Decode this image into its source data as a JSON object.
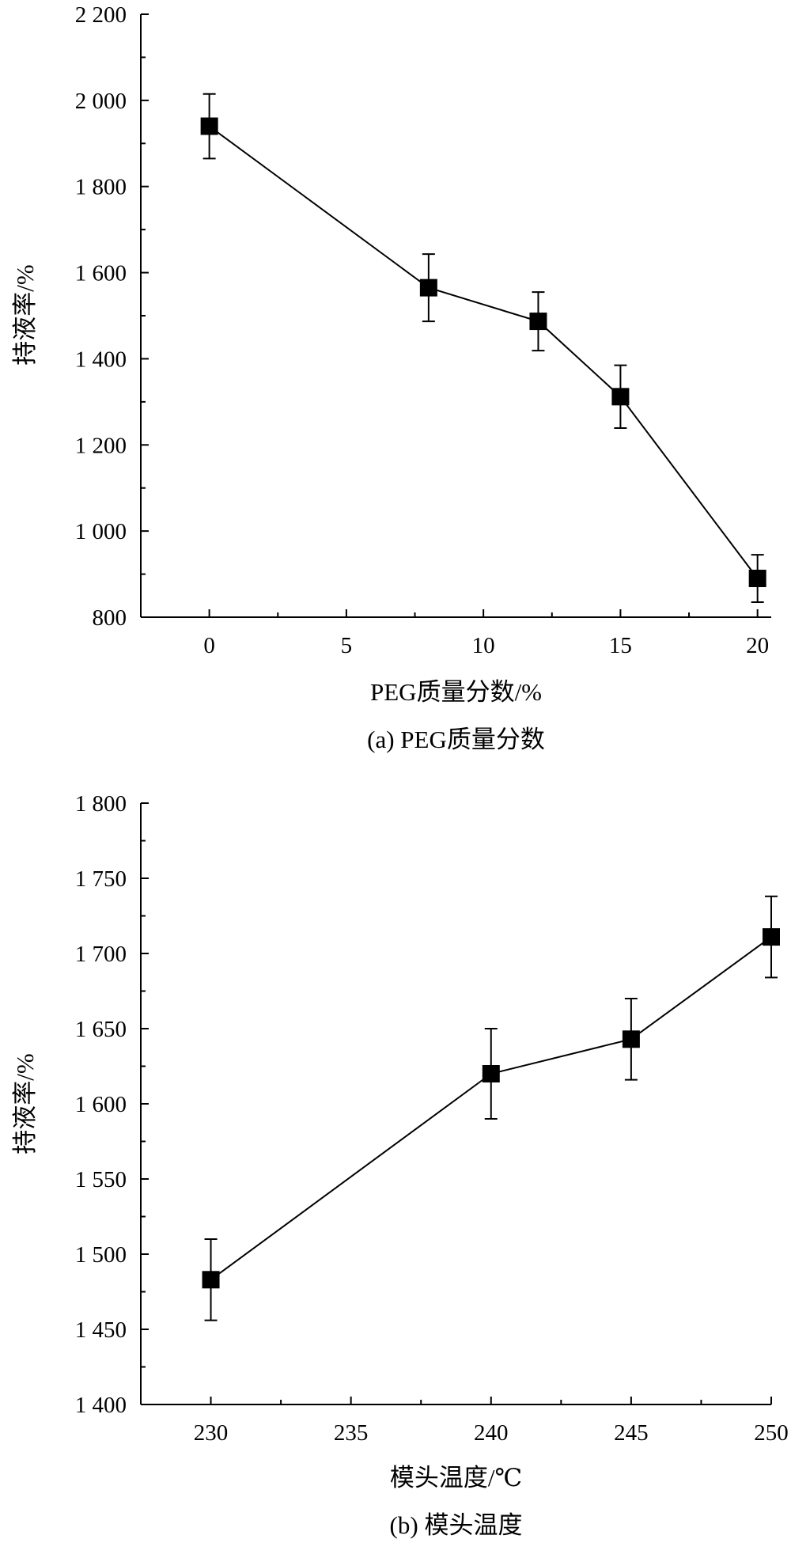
{
  "chart_data": [
    {
      "type": "line",
      "caption": "(a) PEG质量分数",
      "xlabel": "PEG质量分数/%",
      "ylabel": "持液率/%",
      "xlim": [
        -2.5,
        20.5
      ],
      "ylim": [
        800,
        2200
      ],
      "xticks": [
        0,
        5,
        10,
        15,
        20
      ],
      "xtick_labels": [
        "0",
        "5",
        "10",
        "15",
        "20"
      ],
      "yticks": [
        800,
        1000,
        1200,
        1400,
        1600,
        1800,
        2000,
        2200
      ],
      "ytick_labels": [
        "800",
        "1 000",
        "1 200",
        "1 400",
        "1 600",
        "1 800",
        "2 000",
        "2 200"
      ],
      "marker": "square",
      "series": [
        {
          "x": [
            0,
            8,
            12,
            15,
            20
          ],
          "y": [
            1940,
            1565,
            1487,
            1312,
            890
          ],
          "err": [
            75,
            78,
            68,
            73,
            55
          ]
        }
      ]
    },
    {
      "type": "line",
      "caption": "(b) 模头温度",
      "xlabel": "模头温度/℃",
      "ylabel": "持液率/%",
      "xlim": [
        227.5,
        250
      ],
      "ylim": [
        1400,
        1800
      ],
      "xticks": [
        230,
        235,
        240,
        245,
        250
      ],
      "xtick_labels": [
        "230",
        "235",
        "240",
        "245",
        "250"
      ],
      "yticks": [
        1400,
        1450,
        1500,
        1550,
        1600,
        1650,
        1700,
        1750,
        1800
      ],
      "ytick_labels": [
        "1 400",
        "1 450",
        "1 500",
        "1 550",
        "1 600",
        "1 650",
        "1 700",
        "1 750",
        "1 800"
      ],
      "marker": "square",
      "series": [
        {
          "x": [
            230,
            240,
            245,
            250
          ],
          "y": [
            1483,
            1620,
            1643,
            1711
          ],
          "err": [
            27,
            30,
            27,
            27
          ]
        }
      ]
    }
  ]
}
